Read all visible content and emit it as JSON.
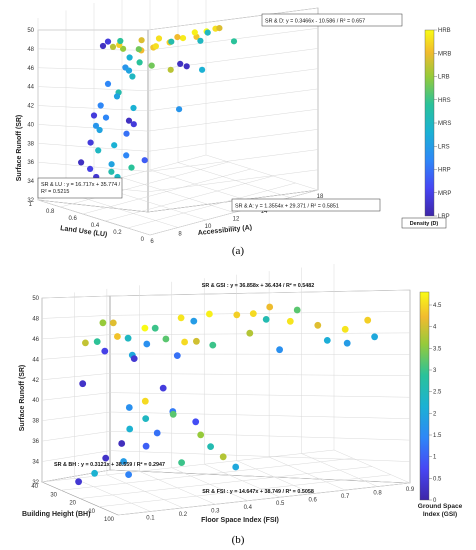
{
  "chart_data": [
    {
      "type": "scatter",
      "caption": "(a)",
      "zlabel": "Surface Runoff (SR)",
      "xlabel": "Land  Use (LU)",
      "ylabel": "Accessibility (A)",
      "zlim": [
        32,
        50
      ],
      "xlim": [
        0,
        1
      ],
      "ylim": [
        6,
        18
      ],
      "z_ticks": [
        "32",
        "34",
        "36",
        "38",
        "40",
        "42",
        "44",
        "46",
        "48",
        "50"
      ],
      "x_ticks": [
        "1",
        "0.8",
        "0.6",
        "0.4",
        "0.2",
        "0"
      ],
      "y_ticks": [
        "6",
        "8",
        "10",
        "12",
        "14",
        "16",
        "18"
      ],
      "colorbar": {
        "label": "Density (D)",
        "categories": [
          "LRP",
          "MRP",
          "HRP",
          "LRS",
          "MRS",
          "HRS",
          "LRB",
          "MRB",
          "HRB"
        ]
      },
      "annotations": [
        {
          "text": "SR & D: y = 0.3466x - 10.586 / R² = 0.657"
        },
        {
          "text": "SR & LU : y = 16.717x + 35.774 / R² = 0.5215"
        },
        {
          "text": "SR & A: y = 1.3554x + 29.371 / R² = 0.5851"
        }
      ],
      "points": [
        {
          "x": 0.3,
          "y": 9.8,
          "z": 48.6,
          "c": 0.92
        },
        {
          "x": 0.28,
          "y": 10.6,
          "z": 48.8,
          "c": 0.97
        },
        {
          "x": 0.26,
          "y": 11.4,
          "z": 48.7,
          "c": 0.9
        },
        {
          "x": 0.27,
          "y": 12.2,
          "z": 48.9,
          "c": 1.0
        },
        {
          "x": 0.29,
          "y": 13.0,
          "z": 48.8,
          "c": 0.95
        },
        {
          "x": 0.33,
          "y": 13.6,
          "z": 48.5,
          "c": 0.85
        },
        {
          "x": 0.32,
          "y": 8.8,
          "z": 48.4,
          "c": 0.9
        },
        {
          "x": 0.34,
          "y": 8.1,
          "z": 48.3,
          "c": 0.88
        },
        {
          "x": 0.36,
          "y": 9.3,
          "z": 48.2,
          "c": 0.95
        },
        {
          "x": 0.4,
          "y": 8.4,
          "z": 48.1,
          "c": 0.7
        },
        {
          "x": 0.44,
          "y": 7.6,
          "z": 48.3,
          "c": 0.75
        },
        {
          "x": 0.48,
          "y": 7.2,
          "z": 48.5,
          "c": 0.8
        },
        {
          "x": 0.5,
          "y": 7.8,
          "z": 48.4,
          "c": 0.92
        },
        {
          "x": 0.52,
          "y": 6.8,
          "z": 48.6,
          "c": 0.05
        },
        {
          "x": 0.55,
          "y": 7.4,
          "z": 48.7,
          "c": 0.1
        },
        {
          "x": 0.54,
          "y": 8.2,
          "z": 48.5,
          "c": 0.6
        },
        {
          "x": 0.45,
          "y": 9.0,
          "z": 48.6,
          "c": 0.85
        },
        {
          "x": 0.42,
          "y": 10.0,
          "z": 48.5,
          "c": 0.95
        },
        {
          "x": 0.38,
          "y": 11.0,
          "z": 48.4,
          "c": 0.88
        },
        {
          "x": 0.35,
          "y": 12.0,
          "z": 48.6,
          "c": 0.98
        },
        {
          "x": 0.31,
          "y": 12.6,
          "z": 48.5,
          "c": 0.5
        },
        {
          "x": 0.46,
          "y": 11.2,
          "z": 47.6,
          "c": 0.55
        },
        {
          "x": 0.4,
          "y": 12.8,
          "z": 47.3,
          "c": 0.5
        },
        {
          "x": 0.42,
          "y": 7.9,
          "z": 47.4,
          "c": 0.45
        },
        {
          "x": 0.38,
          "y": 8.3,
          "z": 46.9,
          "c": 0.6
        },
        {
          "x": 0.36,
          "y": 9.0,
          "z": 46.4,
          "c": 0.7
        },
        {
          "x": 0.47,
          "y": 8.0,
          "z": 46.2,
          "c": 0.35
        },
        {
          "x": 0.5,
          "y": 8.5,
          "z": 45.6,
          "c": 0.4
        },
        {
          "x": 0.34,
          "y": 10.2,
          "z": 45.6,
          "c": 0.8
        },
        {
          "x": 0.33,
          "y": 10.8,
          "z": 46.0,
          "c": 0.05
        },
        {
          "x": 0.36,
          "y": 11.5,
          "z": 45.4,
          "c": 0.05
        },
        {
          "x": 0.52,
          "y": 8.9,
          "z": 44.8,
          "c": 0.5
        },
        {
          "x": 0.6,
          "y": 7.8,
          "z": 44.2,
          "c": 0.3
        },
        {
          "x": 0.58,
          "y": 8.4,
          "z": 43.2,
          "c": 0.55
        },
        {
          "x": 0.62,
          "y": 8.6,
          "z": 42.6,
          "c": 0.4
        },
        {
          "x": 0.64,
          "y": 7.6,
          "z": 42.0,
          "c": 0.3
        },
        {
          "x": 0.56,
          "y": 9.3,
          "z": 41.4,
          "c": 0.45
        },
        {
          "x": 0.7,
          "y": 7.6,
          "z": 40.8,
          "c": 0.1
        },
        {
          "x": 0.68,
          "y": 8.3,
          "z": 40.4,
          "c": 0.3
        },
        {
          "x": 0.6,
          "y": 9.3,
          "z": 40.0,
          "c": 0.05
        },
        {
          "x": 0.72,
          "y": 7.9,
          "z": 39.6,
          "c": 0.35
        },
        {
          "x": 0.62,
          "y": 9.8,
          "z": 39.4,
          "c": 0.1
        },
        {
          "x": 0.75,
          "y": 8.4,
          "z": 38.9,
          "c": 0.4
        },
        {
          "x": 0.66,
          "y": 9.6,
          "z": 38.4,
          "c": 0.25
        },
        {
          "x": 0.78,
          "y": 8.0,
          "z": 37.7,
          "c": 0.1
        },
        {
          "x": 0.72,
          "y": 9.2,
          "z": 37.2,
          "c": 0.45
        },
        {
          "x": 0.8,
          "y": 8.7,
          "z": 36.6,
          "c": 0.5
        },
        {
          "x": 0.7,
          "y": 9.9,
          "z": 36.0,
          "c": 0.3
        },
        {
          "x": 0.84,
          "y": 7.8,
          "z": 35.6,
          "c": 0.05
        },
        {
          "x": 0.78,
          "y": 9.5,
          "z": 35.0,
          "c": 0.4
        },
        {
          "x": 0.86,
          "y": 8.6,
          "z": 34.6,
          "c": 0.12
        },
        {
          "x": 0.82,
          "y": 9.8,
          "z": 34.0,
          "c": 0.55
        },
        {
          "x": 0.88,
          "y": 9.2,
          "z": 33.5,
          "c": 0.08
        },
        {
          "x": 0.84,
          "y": 10.4,
          "z": 33.2,
          "c": 0.5
        },
        {
          "x": 0.92,
          "y": 8.8,
          "z": 32.9,
          "c": 0.05
        },
        {
          "x": 0.74,
          "y": 10.6,
          "z": 34.4,
          "c": 0.6
        },
        {
          "x": 0.66,
          "y": 10.9,
          "z": 35.3,
          "c": 0.2
        },
        {
          "x": 0.54,
          "y": 12.4,
          "z": 40.2,
          "c": 0.35
        },
        {
          "x": 0.46,
          "y": 13.4,
          "z": 44.0,
          "c": 0.45
        },
        {
          "x": 0.3,
          "y": 14.4,
          "z": 47.0,
          "c": 0.6
        }
      ]
    },
    {
      "type": "scatter",
      "caption": "(b)",
      "zlabel": "Surface Runoff (SR)",
      "xlabel": "Building Height (BH)",
      "ylabel": "Floor Space Index (FSI)",
      "zlim": [
        32,
        50
      ],
      "xlim": [
        0,
        100
      ],
      "ylim": [
        0,
        0.9
      ],
      "z_ticks": [
        "32",
        "34",
        "36",
        "38",
        "40",
        "42",
        "44",
        "46",
        "48",
        "50"
      ],
      "x_ticks": [
        "40",
        "30",
        "20",
        "10",
        "100"
      ],
      "y_ticks": [
        "0.1",
        "0.2",
        "0.3",
        "0.4",
        "0.5",
        "0.6",
        "0.7",
        "0.8",
        "0.9"
      ],
      "colorbar": {
        "label": "Ground Space Index (GSI)",
        "ticks": [
          "0",
          "0.5",
          "1",
          "1.5",
          "2",
          "2.5",
          "3",
          "3.5",
          "4",
          "4.5"
        ],
        "min": 0,
        "max": 4.8
      },
      "annotations": [
        {
          "text": "SR & GSI : y = 36.858x + 36.434 / R² = 0.5482"
        },
        {
          "text": "SR & BH : y = 0.3121x + 38.559 / R² = 0.2947"
        },
        {
          "text": "SR & FSI : y = 14.647x + 38.749 / R² = 0.5058"
        }
      ],
      "points": [
        {
          "x": 0.45,
          "y": 0.3,
          "z": 48.6,
          "c": 4.6
        },
        {
          "x": 0.42,
          "y": 0.38,
          "z": 48.8,
          "c": 4.7
        },
        {
          "x": 0.4,
          "y": 0.46,
          "z": 48.5,
          "c": 4.4
        },
        {
          "x": 0.44,
          "y": 0.52,
          "z": 48.3,
          "c": 4.5
        },
        {
          "x": 0.48,
          "y": 0.58,
          "z": 48.6,
          "c": 4.2
        },
        {
          "x": 0.46,
          "y": 0.66,
          "z": 48.1,
          "c": 3.2
        },
        {
          "x": 0.38,
          "y": 0.62,
          "z": 47.4,
          "c": 4.6
        },
        {
          "x": 0.5,
          "y": 0.2,
          "z": 47.8,
          "c": 4.8
        },
        {
          "x": 0.52,
          "y": 0.12,
          "z": 47.2,
          "c": 4.3
        },
        {
          "x": 0.55,
          "y": 0.16,
          "z": 46.8,
          "c": 2.4
        },
        {
          "x": 0.48,
          "y": 0.26,
          "z": 46.6,
          "c": 3.2
        },
        {
          "x": 0.42,
          "y": 0.34,
          "z": 46.3,
          "c": 4.0
        },
        {
          "x": 0.56,
          "y": 0.22,
          "z": 46.0,
          "c": 1.6
        },
        {
          "x": 0.6,
          "y": 0.1,
          "z": 45.6,
          "c": 0.6
        },
        {
          "x": 0.58,
          "y": 0.18,
          "z": 45.0,
          "c": 2.0
        },
        {
          "x": 0.5,
          "y": 0.3,
          "z": 44.8,
          "c": 1.2
        },
        {
          "x": 0.46,
          "y": 0.4,
          "z": 45.6,
          "c": 3.0
        },
        {
          "x": 0.4,
          "y": 0.5,
          "z": 46.6,
          "c": 3.8
        },
        {
          "x": 0.36,
          "y": 0.7,
          "z": 46.8,
          "c": 4.1
        },
        {
          "x": 0.34,
          "y": 0.78,
          "z": 46.2,
          "c": 4.6
        },
        {
          "x": 0.3,
          "y": 0.84,
          "z": 47.0,
          "c": 4.4
        },
        {
          "x": 0.32,
          "y": 0.72,
          "z": 45.4,
          "c": 2.1
        },
        {
          "x": 0.44,
          "y": 0.56,
          "z": 47.6,
          "c": 2.6
        },
        {
          "x": 0.54,
          "y": 0.36,
          "z": 47.8,
          "c": 1.8
        },
        {
          "x": 0.62,
          "y": 0.26,
          "z": 47.2,
          "c": 3.0
        },
        {
          "x": 0.66,
          "y": 0.14,
          "z": 48.0,
          "c": 4.1
        },
        {
          "x": 0.7,
          "y": 0.1,
          "z": 46.2,
          "c": 2.9
        },
        {
          "x": 0.64,
          "y": 0.2,
          "z": 44.4,
          "c": 0.4
        },
        {
          "x": 0.72,
          "y": 0.06,
          "z": 42.2,
          "c": 0.3
        },
        {
          "x": 0.6,
          "y": 0.28,
          "z": 41.4,
          "c": 0.5
        },
        {
          "x": 0.58,
          "y": 0.22,
          "z": 40.4,
          "c": 4.5
        },
        {
          "x": 0.62,
          "y": 0.18,
          "z": 39.8,
          "c": 1.6
        },
        {
          "x": 0.56,
          "y": 0.3,
          "z": 39.2,
          "c": 1.3
        },
        {
          "x": 0.66,
          "y": 0.24,
          "z": 38.4,
          "c": 2.4
        },
        {
          "x": 0.64,
          "y": 0.32,
          "z": 38.6,
          "c": 3.2
        },
        {
          "x": 0.6,
          "y": 0.38,
          "z": 37.8,
          "c": 0.8
        },
        {
          "x": 0.7,
          "y": 0.2,
          "z": 37.4,
          "c": 2.2
        },
        {
          "x": 0.68,
          "y": 0.28,
          "z": 36.8,
          "c": 1.2
        },
        {
          "x": 0.62,
          "y": 0.4,
          "z": 36.4,
          "c": 3.6
        },
        {
          "x": 0.72,
          "y": 0.18,
          "z": 36.0,
          "c": 0.2
        },
        {
          "x": 0.74,
          "y": 0.26,
          "z": 35.4,
          "c": 1.0
        },
        {
          "x": 0.66,
          "y": 0.44,
          "z": 35.0,
          "c": 2.6
        },
        {
          "x": 0.76,
          "y": 0.14,
          "z": 34.6,
          "c": 0.3
        },
        {
          "x": 0.78,
          "y": 0.2,
          "z": 34.0,
          "c": 1.8
        },
        {
          "x": 0.7,
          "y": 0.36,
          "z": 33.6,
          "c": 3.0
        },
        {
          "x": 0.82,
          "y": 0.12,
          "z": 33.0,
          "c": 2.2
        },
        {
          "x": 0.8,
          "y": 0.22,
          "z": 32.6,
          "c": 1.4
        },
        {
          "x": 0.86,
          "y": 0.08,
          "z": 32.2,
          "c": 0.4
        },
        {
          "x": 0.58,
          "y": 0.46,
          "z": 34.2,
          "c": 3.8
        },
        {
          "x": 0.5,
          "y": 0.48,
          "z": 33.4,
          "c": 2.0
        },
        {
          "x": 0.52,
          "y": 0.62,
          "z": 44.2,
          "c": 1.6
        },
        {
          "x": 0.4,
          "y": 0.8,
          "z": 44.6,
          "c": 1.8
        },
        {
          "x": 0.38,
          "y": 0.88,
          "z": 45.0,
          "c": 2.0
        },
        {
          "x": 0.54,
          "y": 0.08,
          "z": 48.6,
          "c": 3.6
        },
        {
          "x": 0.6,
          "y": 0.04,
          "z": 46.6,
          "c": 3.9
        },
        {
          "x": 0.66,
          "y": 0.36,
          "z": 45.4,
          "c": 4.5
        }
      ]
    }
  ]
}
